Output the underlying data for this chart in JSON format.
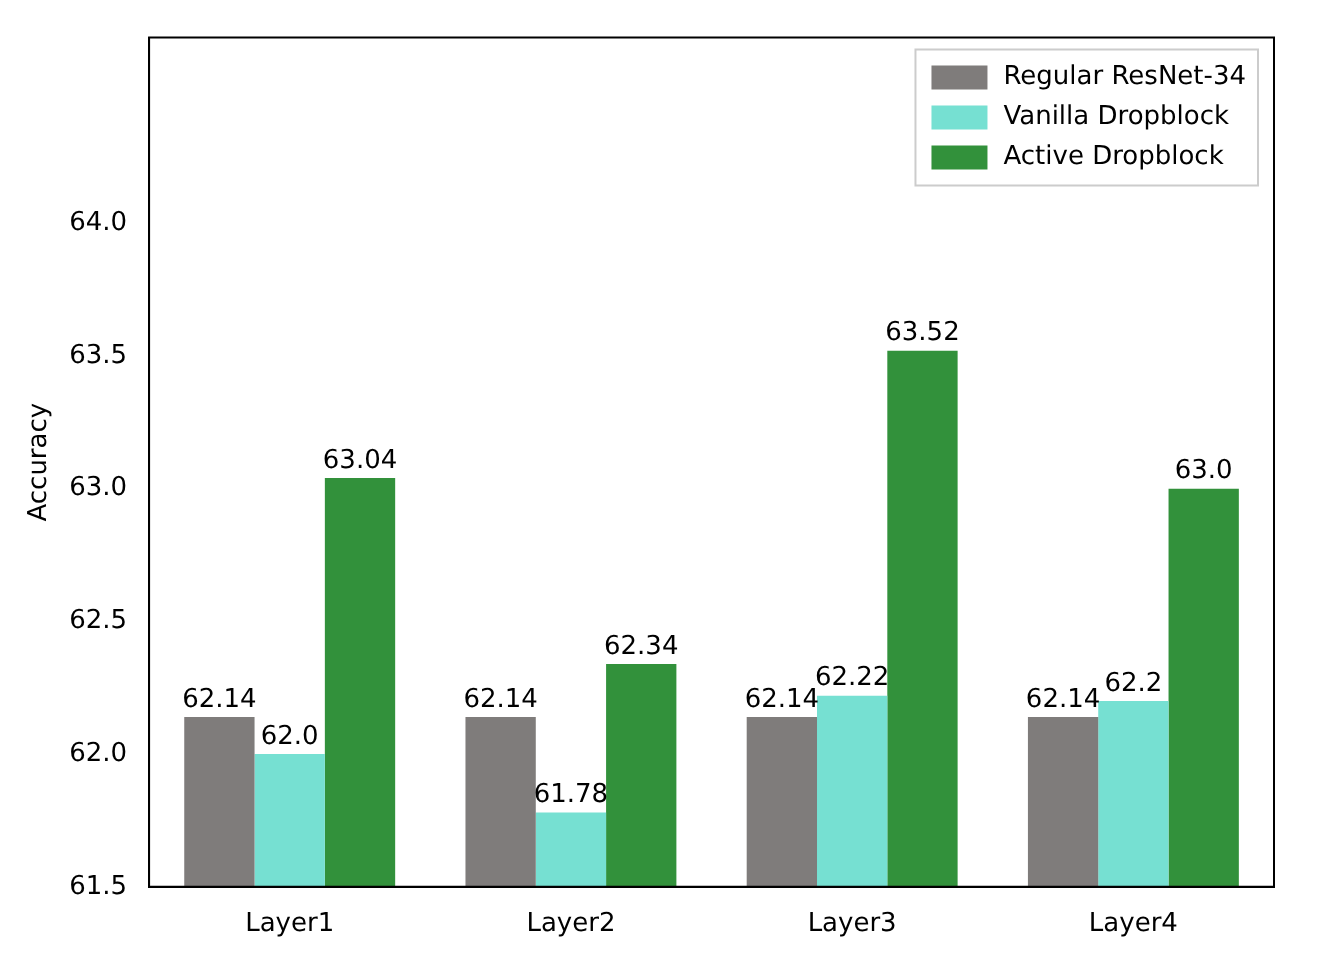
{
  "chart_data": {
    "type": "bar",
    "ylabel": "Accuracy",
    "categories": [
      "Layer1",
      "Layer2",
      "Layer3",
      "Layer4"
    ],
    "series": [
      {
        "name": "Regular ResNet-34",
        "color": "#7f7c7b",
        "values": [
          62.14,
          62.14,
          62.14,
          62.14
        ],
        "value_labels": [
          "62.14",
          "62.14",
          "62.14",
          "62.14"
        ]
      },
      {
        "name": "Vanilla Dropblock",
        "color": "#76e0d2",
        "values": [
          62.0,
          61.78,
          62.22,
          62.2
        ],
        "value_labels": [
          "62.0",
          "61.78",
          "62.22",
          "62.2"
        ]
      },
      {
        "name": "Active Dropblock",
        "color": "#32913b",
        "values": [
          63.04,
          62.34,
          63.52,
          63.0
        ],
        "value_labels": [
          "63.04",
          "62.34",
          "63.52",
          "63.0"
        ]
      }
    ],
    "ylim": [
      61.5,
      64.7
    ],
    "yticks": [
      61.5,
      {
        "value": 62,
        "label": "62.0"
      },
      62.5,
      {
        "value": 63,
        "label": "63.0"
      },
      63.5,
      {
        "value": 64,
        "label": "64.0"
      }
    ],
    "grid": false,
    "legend": "top right"
  }
}
